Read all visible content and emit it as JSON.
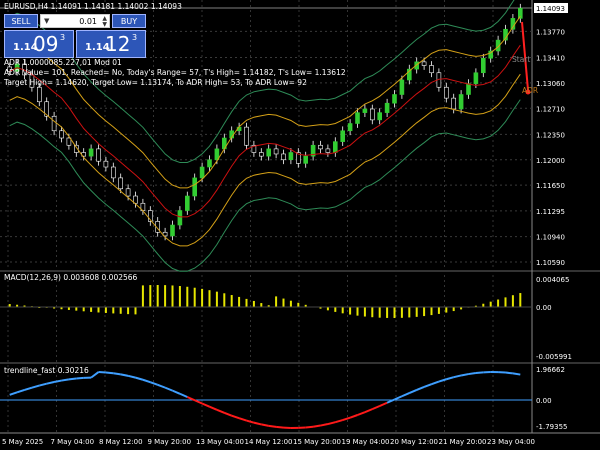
{
  "window": {
    "symbol_line": "EURUSD,H4  1.14091 1.14181 1.14002 1.14093"
  },
  "trade_panel": {
    "sell_label": "SELL",
    "buy_label": "BUY",
    "lot_value": "0.01",
    "sell_price": {
      "small": "1.14",
      "big": "09",
      "sup": "3"
    },
    "buy_price": {
      "small": "1.14",
      "big": "12",
      "sup": "3"
    }
  },
  "adr_info": {
    "line1": "ADR 1.0000085.227,01 Mod 01",
    "line2": "ADR Value= 101, Reached= No, Today's Range= 57, T's High= 1.14182, T's Low= 1.13612",
    "line3": "Target High= 1.14620, Target Low= 1.13174, To ADR High= 53, To ADR Low= 92"
  },
  "chart_labels": {
    "adr_tag": "ADR",
    "start_tag": "Start"
  },
  "price_axis": {
    "ticks": [
      "1.14093",
      "1.13770",
      "1.13410",
      "1.13060",
      "1.12710",
      "1.12350",
      "1.12000",
      "1.11650",
      "1.11295",
      "1.10940",
      "1.10590"
    ],
    "current": "1.14093"
  },
  "macd": {
    "title": "MACD(12,26,9) 0.003608 0.002566",
    "ticks": [
      "0.004065",
      "0.00",
      "-0.005991"
    ]
  },
  "trendline": {
    "title": "trendline_fast 0.30216",
    "ticks": [
      "1.96662",
      "0.00",
      "-1.79355"
    ]
  },
  "time_axis": {
    "labels": [
      "5 May 2025",
      "7 May 04:00",
      "8 May 12:00",
      "9 May 20:00",
      "13 May 04:00",
      "14 May 12:00",
      "15 May 20:00",
      "19 May 04:00",
      "20 May 12:00",
      "21 May 20:00",
      "23 May 04:00"
    ]
  },
  "colors": {
    "bull": "#32cd32",
    "bear": "#000000",
    "band_outer": "#2e8b57",
    "band_mid": "#d4a017",
    "ma_red": "#cc1111",
    "macd_bar": "#e6e600",
    "up_line": "#3f9fff",
    "down_line": "#ff1a1a"
  },
  "chart_data": {
    "type": "candlestick",
    "closes": [
      1.1322,
      1.1332,
      1.1317,
      1.13,
      1.128,
      1.126,
      1.124,
      1.123,
      1.122,
      1.121,
      1.1205,
      1.1215,
      1.1198,
      1.119,
      1.1175,
      1.116,
      1.115,
      1.114,
      1.113,
      1.1115,
      1.11,
      1.1095,
      1.111,
      1.113,
      1.115,
      1.1175,
      1.119,
      1.12,
      1.1215,
      1.123,
      1.124,
      1.1245,
      1.122,
      1.121,
      1.1205,
      1.1215,
      1.1208,
      1.12,
      1.121,
      1.1195,
      1.1205,
      1.122,
      1.1215,
      1.121,
      1.1225,
      1.124,
      1.125,
      1.1265,
      1.127,
      1.1255,
      1.1265,
      1.1278,
      1.129,
      1.131,
      1.1325,
      1.1335,
      1.133,
      1.132,
      1.13,
      1.1285,
      1.127,
      1.129,
      1.1305,
      1.132,
      1.134,
      1.135,
      1.1365,
      1.138,
      1.1395,
      1.1409
    ]
  }
}
